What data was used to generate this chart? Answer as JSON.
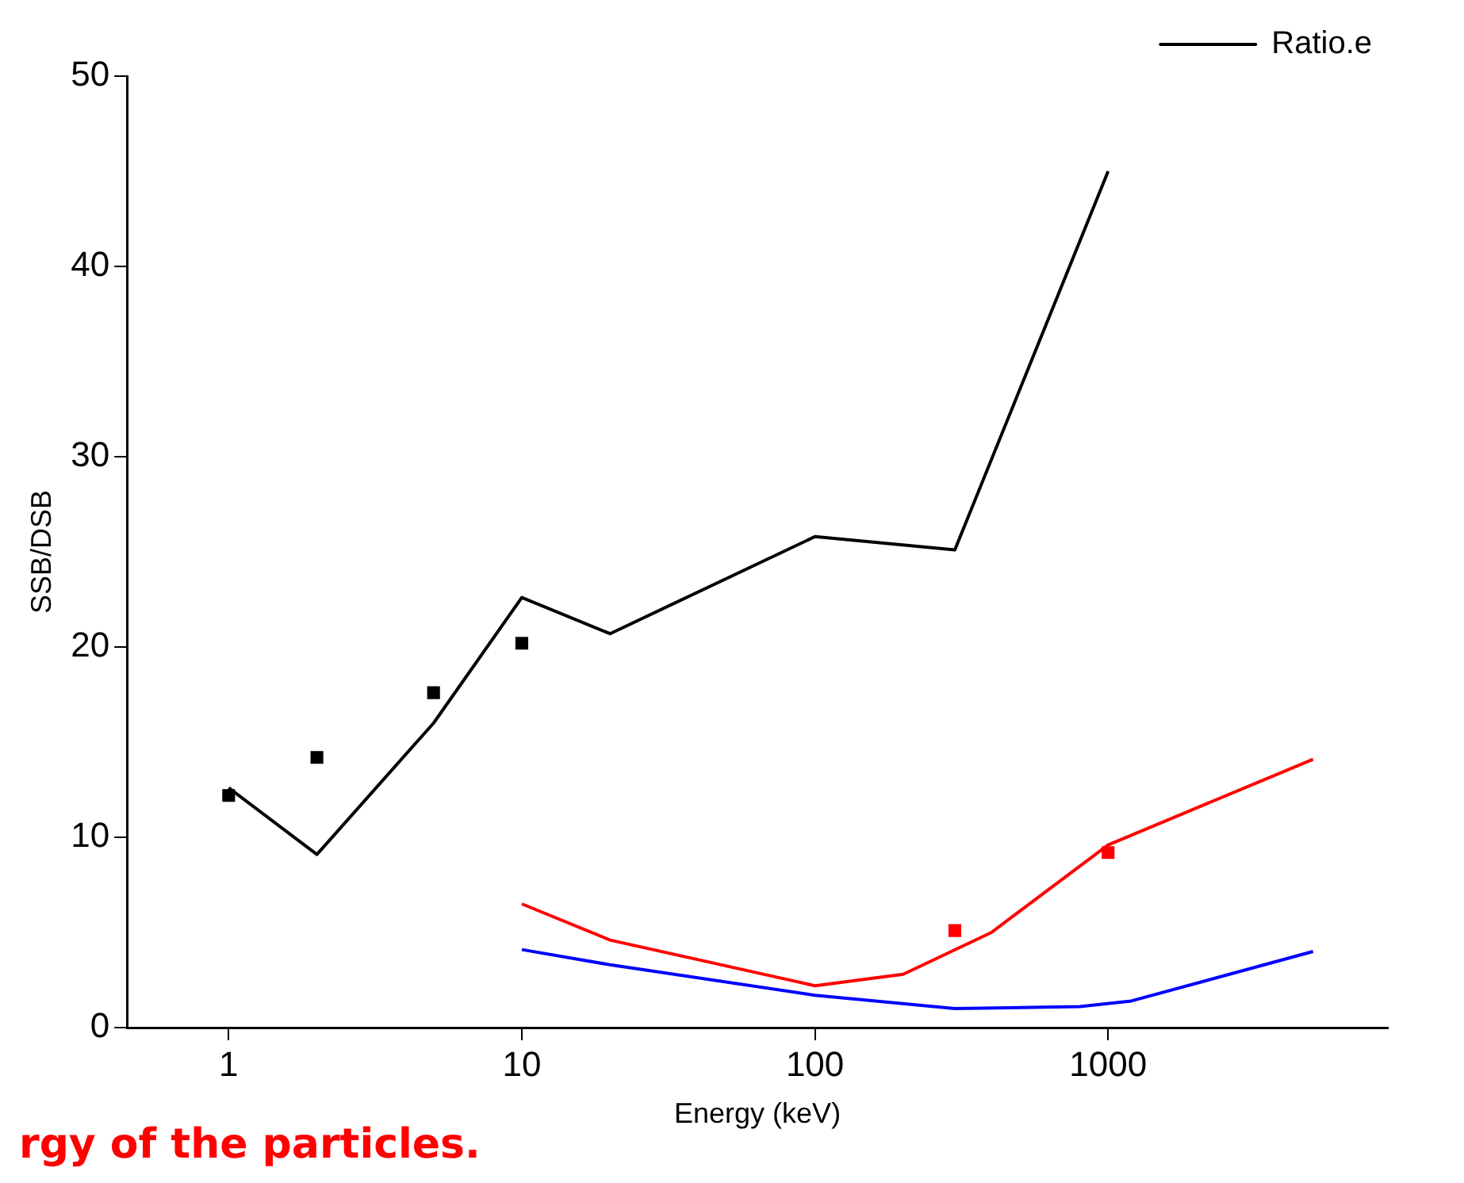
{
  "chart_data": {
    "type": "line",
    "xlabel": "Energy (keV)",
    "ylabel": "SSB/DSB",
    "log": "x",
    "xlim": [
      0.45,
      9000
    ],
    "xticks": [
      1,
      10,
      100,
      1000
    ],
    "ylim": [
      0,
      50
    ],
    "yticks": [
      0,
      10,
      20,
      30,
      40,
      50
    ],
    "grid": false,
    "legend": "top right",
    "annotations": [
      "rgy of the particles."
    ],
    "series": [
      {
        "name": "Ratio.e",
        "type": "line",
        "color": "#000000",
        "marker": "none",
        "x": [
          1,
          2,
          5,
          10,
          20,
          100,
          300,
          1000
        ],
        "values": [
          12.6,
          9.1,
          16,
          22.6,
          20.7,
          25.8,
          25.1,
          45
        ]
      },
      {
        "type": "scatter",
        "color": "#000000",
        "marker": "square",
        "x": [
          1,
          2,
          5,
          10
        ],
        "values": [
          12.2,
          14.2,
          17.6,
          20.2
        ]
      },
      {
        "type": "line",
        "color": "#ff0000",
        "marker": "none",
        "x": [
          10,
          20,
          100,
          200,
          400,
          1000,
          5000
        ],
        "values": [
          6.5,
          4.6,
          2.2,
          2.8,
          5.0,
          9.6,
          14.1
        ]
      },
      {
        "type": "scatter",
        "color": "#ff0000",
        "marker": "square",
        "x": [
          300,
          1000
        ],
        "values": [
          5.1,
          9.2
        ]
      },
      {
        "type": "line",
        "color": "#0000ff",
        "marker": "none",
        "x": [
          10,
          20,
          100,
          300,
          800,
          1200,
          5000
        ],
        "values": [
          4.1,
          3.3,
          1.7,
          1.0,
          1.1,
          1.4,
          4.0
        ]
      }
    ]
  }
}
